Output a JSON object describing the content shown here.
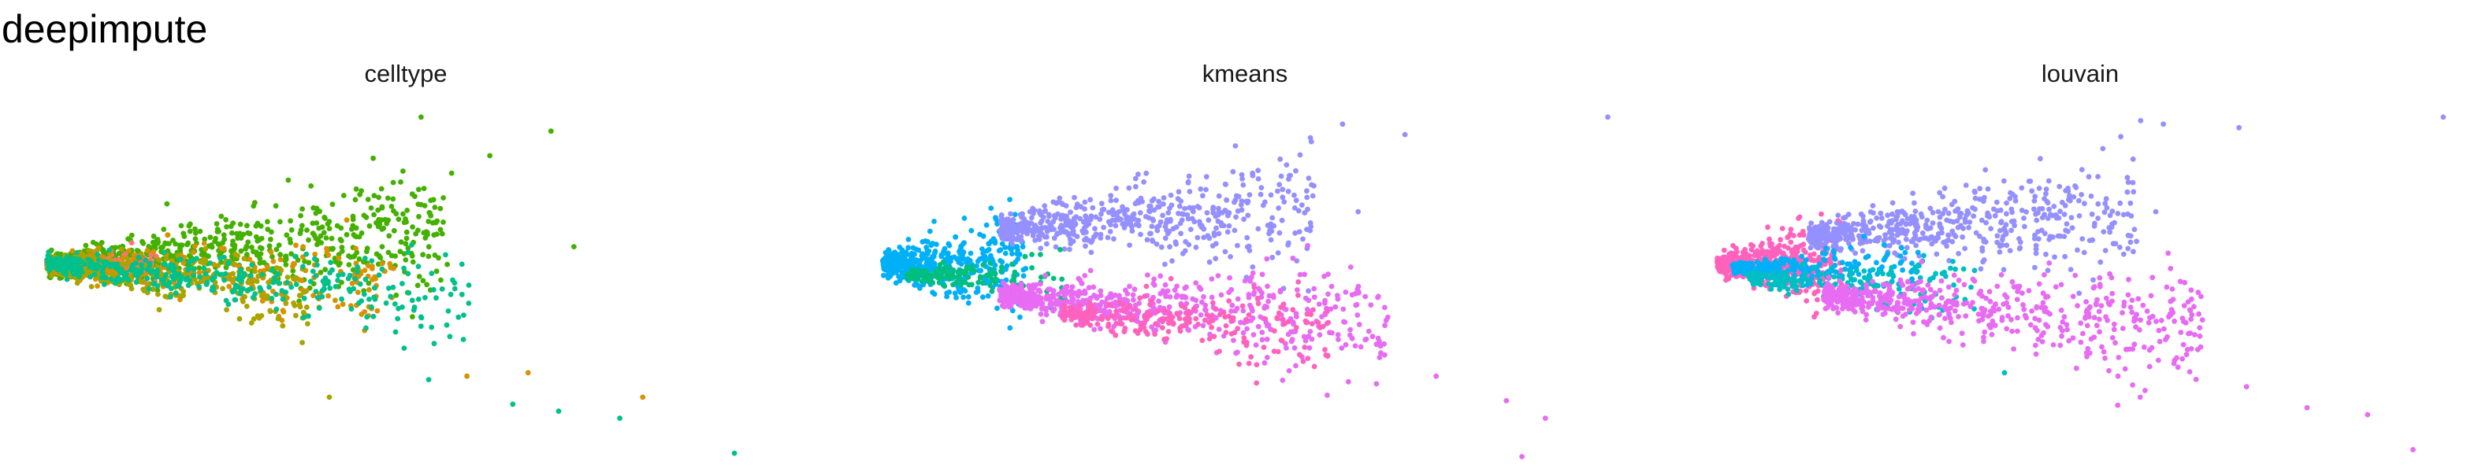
{
  "figure": {
    "title": "deepimpute"
  },
  "chart_data": [
    {
      "type": "scatter",
      "title": "celltype",
      "xlabel": "",
      "ylabel": "",
      "axes_visible": false,
      "grid": false,
      "legend": "none",
      "xlim": [
        0,
        1
      ],
      "ylim": [
        0,
        1
      ],
      "series": [
        {
          "name": "",
          "color": "#44B000",
          "shape": "upper",
          "count": 700,
          "apex": [
            0.03,
            0.56
          ],
          "reach": 0.52,
          "slope": 0.19,
          "spread": 0.045,
          "outliers": [
            [
              0.52,
              0.98
            ],
            [
              0.69,
              0.94
            ],
            [
              0.61,
              0.87
            ],
            [
              0.56,
              0.82
            ],
            [
              0.72,
              0.61
            ]
          ]
        },
        {
          "name": "",
          "color": "#F8766D",
          "shape": "core",
          "count": 240,
          "apex": [
            0.03,
            0.56
          ],
          "reach": 0.14,
          "slope": 0.0,
          "spread": 0.012,
          "outliers": []
        },
        {
          "name": "",
          "color": "#D99100",
          "shape": "lower",
          "count": 330,
          "apex": [
            0.03,
            0.56
          ],
          "reach": 0.45,
          "slope": -0.14,
          "spread": 0.035,
          "outliers": [
            [
              0.58,
              0.24
            ],
            [
              0.66,
              0.25
            ],
            [
              0.81,
              0.18
            ]
          ]
        },
        {
          "name": "",
          "color": "#A8A400",
          "shape": "lower",
          "count": 330,
          "apex": [
            0.03,
            0.56
          ],
          "reach": 0.34,
          "slope": -0.22,
          "spread": 0.032,
          "outliers": [
            [
              0.4,
              0.18
            ]
          ]
        },
        {
          "name": "",
          "color": "#00C08B",
          "shape": "lower",
          "count": 380,
          "apex": [
            0.03,
            0.56
          ],
          "reach": 0.55,
          "slope": -0.19,
          "spread": 0.035,
          "outliers": [
            [
              0.64,
              0.16
            ],
            [
              0.7,
              0.14
            ],
            [
              0.78,
              0.12
            ],
            [
              0.93,
              0.02
            ],
            [
              0.53,
              0.23
            ]
          ]
        }
      ]
    },
    {
      "type": "scatter",
      "title": "kmeans",
      "xlabel": "",
      "ylabel": "",
      "axes_visible": false,
      "grid": false,
      "legend": "none",
      "xlim": [
        0,
        1
      ],
      "ylim": [
        0,
        1
      ],
      "series": [
        {
          "name": "",
          "color": "#00B0F6",
          "shape": "core",
          "count": 520,
          "apex": [
            0.02,
            0.56
          ],
          "reach": 0.18,
          "slope": 0.0,
          "spread": 0.04,
          "outliers": []
        },
        {
          "name": "",
          "color": "#9590FF",
          "shape": "upper",
          "count": 560,
          "apex": [
            0.17,
            0.66
          ],
          "reach": 0.4,
          "slope": 0.15,
          "spread": 0.045,
          "outliers": [
            [
              0.61,
              0.96
            ],
            [
              0.69,
              0.93
            ],
            [
              0.57,
              0.91
            ],
            [
              0.53,
              0.86
            ],
            [
              0.63,
              0.71
            ],
            [
              0.95,
              0.98
            ]
          ]
        },
        {
          "name": "",
          "color": "#00BF7D",
          "shape": "lower",
          "count": 140,
          "apex": [
            0.05,
            0.53
          ],
          "reach": 0.2,
          "slope": -0.05,
          "spread": 0.02,
          "outliers": []
        },
        {
          "name": "",
          "color": "#E76BF3",
          "shape": "lower",
          "count": 620,
          "apex": [
            0.17,
            0.47
          ],
          "reach": 0.5,
          "slope": -0.17,
          "spread": 0.045,
          "outliers": [
            [
              0.55,
              0.27
            ],
            [
              0.73,
              0.24
            ],
            [
              0.82,
              0.17
            ],
            [
              0.87,
              0.12
            ],
            [
              0.84,
              0.01
            ]
          ]
        },
        {
          "name": "",
          "color": "#FF62BC",
          "shape": "lower",
          "count": 240,
          "apex": [
            0.25,
            0.42
          ],
          "reach": 0.35,
          "slope": -0.18,
          "spread": 0.035,
          "outliers": []
        }
      ]
    },
    {
      "type": "scatter",
      "title": "louvain",
      "xlabel": "",
      "ylabel": "",
      "axes_visible": false,
      "grid": false,
      "legend": "none",
      "xlim": [
        0,
        1
      ],
      "ylim": [
        0,
        1
      ],
      "series": [
        {
          "name": "",
          "color": "#FF62BC",
          "shape": "core",
          "count": 480,
          "apex": [
            0.02,
            0.56
          ],
          "reach": 0.16,
          "slope": 0.04,
          "spread": 0.035,
          "outliers": []
        },
        {
          "name": "",
          "color": "#9590FF",
          "shape": "upper",
          "count": 580,
          "apex": [
            0.14,
            0.64
          ],
          "reach": 0.43,
          "slope": 0.16,
          "spread": 0.045,
          "outliers": [
            [
              0.58,
              0.97
            ],
            [
              0.61,
              0.96
            ],
            [
              0.71,
              0.95
            ],
            [
              0.53,
              0.89
            ],
            [
              0.57,
              0.86
            ],
            [
              0.6,
              0.71
            ],
            [
              0.98,
              0.98
            ]
          ]
        },
        {
          "name": "",
          "color": "#00B0F6",
          "shape": "lower",
          "count": 250,
          "apex": [
            0.04,
            0.55
          ],
          "reach": 0.25,
          "slope": -0.04,
          "spread": 0.022,
          "outliers": []
        },
        {
          "name": "",
          "color": "#00BFC4",
          "shape": "lower",
          "count": 200,
          "apex": [
            0.06,
            0.52
          ],
          "reach": 0.3,
          "slope": -0.13,
          "spread": 0.025,
          "outliers": [
            [
              0.4,
              0.25
            ]
          ]
        },
        {
          "name": "",
          "color": "#E76BF3",
          "shape": "lower",
          "count": 560,
          "apex": [
            0.16,
            0.47
          ],
          "reach": 0.5,
          "slope": -0.18,
          "spread": 0.045,
          "outliers": [
            [
              0.55,
              0.24
            ],
            [
              0.72,
              0.21
            ],
            [
              0.8,
              0.15
            ],
            [
              0.88,
              0.13
            ],
            [
              0.94,
              0.03
            ]
          ]
        }
      ]
    }
  ]
}
